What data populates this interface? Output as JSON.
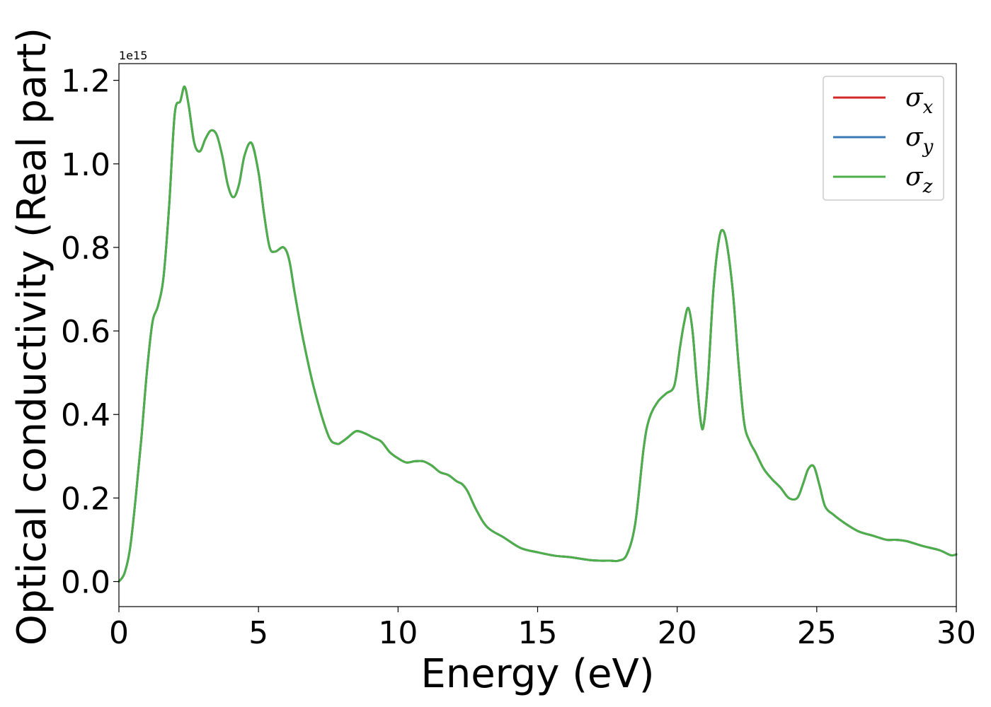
{
  "chart_data": {
    "type": "line",
    "title": "",
    "xlabel": "Energy (eV)",
    "ylabel": "Optical conductivity (Real part)",
    "y_offset_label": "1e15",
    "xlim": [
      0,
      30
    ],
    "ylim": [
      -0.06,
      1.24
    ],
    "y_multiplier": 1000000000000000.0,
    "xticks": [
      0,
      5,
      10,
      15,
      20,
      25,
      30
    ],
    "yticks": [
      0.0,
      0.2,
      0.4,
      0.6,
      0.8,
      1.0,
      1.2
    ],
    "ytick_labels": [
      "0.0",
      "0.2",
      "0.4",
      "0.6",
      "0.8",
      "1.0",
      "1.2"
    ],
    "grid": false,
    "legend_position": "top-right",
    "x": [
      0,
      0.2,
      0.4,
      0.6,
      0.8,
      1.0,
      1.2,
      1.4,
      1.6,
      1.8,
      2.0,
      2.2,
      2.35,
      2.5,
      2.7,
      2.9,
      3.1,
      3.3,
      3.5,
      3.7,
      3.9,
      4.1,
      4.3,
      4.5,
      4.75,
      5.0,
      5.2,
      5.4,
      5.6,
      5.9,
      6.1,
      6.3,
      6.6,
      7.0,
      7.5,
      7.8,
      8.0,
      8.2,
      8.5,
      8.8,
      9.1,
      9.4,
      9.7,
      10.0,
      10.3,
      10.6,
      10.9,
      11.2,
      11.5,
      11.8,
      12.1,
      12.3,
      12.5,
      12.8,
      13.2,
      13.8,
      14.4,
      15.0,
      15.6,
      16.2,
      16.8,
      17.2,
      17.6,
      17.9,
      18.2,
      18.5,
      18.8,
      19.0,
      19.3,
      19.6,
      19.9,
      20.1,
      20.25,
      20.4,
      20.55,
      20.7,
      20.85,
      20.95,
      21.1,
      21.3,
      21.5,
      21.65,
      21.8,
      22.0,
      22.2,
      22.4,
      22.6,
      22.8,
      23.1,
      23.4,
      23.7,
      24.0,
      24.3,
      24.5,
      24.7,
      24.9,
      25.1,
      25.3,
      25.6,
      26.0,
      26.5,
      27.0,
      27.5,
      27.8,
      28.2,
      28.8,
      29.4,
      29.8,
      30.0
    ],
    "series": [
      {
        "name": "σ_x",
        "color": "#d62728",
        "values": [
          0.0,
          0.02,
          0.08,
          0.2,
          0.34,
          0.5,
          0.62,
          0.66,
          0.73,
          0.9,
          1.12,
          1.15,
          1.185,
          1.14,
          1.05,
          1.03,
          1.06,
          1.08,
          1.07,
          1.02,
          0.95,
          0.92,
          0.95,
          1.02,
          1.05,
          0.98,
          0.88,
          0.8,
          0.79,
          0.8,
          0.77,
          0.69,
          0.58,
          0.46,
          0.35,
          0.33,
          0.335,
          0.345,
          0.36,
          0.355,
          0.345,
          0.335,
          0.31,
          0.295,
          0.285,
          0.288,
          0.288,
          0.278,
          0.262,
          0.255,
          0.24,
          0.233,
          0.215,
          0.172,
          0.13,
          0.105,
          0.08,
          0.07,
          0.062,
          0.058,
          0.052,
          0.05,
          0.05,
          0.05,
          0.065,
          0.14,
          0.32,
          0.39,
          0.43,
          0.45,
          0.47,
          0.56,
          0.62,
          0.655,
          0.6,
          0.48,
          0.38,
          0.375,
          0.48,
          0.7,
          0.82,
          0.84,
          0.8,
          0.69,
          0.52,
          0.38,
          0.335,
          0.31,
          0.27,
          0.245,
          0.225,
          0.2,
          0.2,
          0.232,
          0.27,
          0.275,
          0.23,
          0.18,
          0.16,
          0.14,
          0.12,
          0.11,
          0.1,
          0.1,
          0.097,
          0.085,
          0.075,
          0.063,
          0.065
        ]
      },
      {
        "name": "σ_y",
        "color": "#3979b6",
        "values": [
          0.0,
          0.02,
          0.08,
          0.2,
          0.34,
          0.5,
          0.62,
          0.66,
          0.73,
          0.9,
          1.12,
          1.15,
          1.185,
          1.14,
          1.05,
          1.03,
          1.06,
          1.08,
          1.07,
          1.02,
          0.95,
          0.92,
          0.95,
          1.02,
          1.05,
          0.98,
          0.88,
          0.8,
          0.79,
          0.8,
          0.77,
          0.69,
          0.58,
          0.46,
          0.35,
          0.33,
          0.335,
          0.345,
          0.36,
          0.355,
          0.345,
          0.335,
          0.31,
          0.295,
          0.285,
          0.288,
          0.288,
          0.278,
          0.262,
          0.255,
          0.24,
          0.233,
          0.215,
          0.172,
          0.13,
          0.105,
          0.08,
          0.07,
          0.062,
          0.058,
          0.052,
          0.05,
          0.05,
          0.05,
          0.065,
          0.14,
          0.32,
          0.39,
          0.43,
          0.45,
          0.47,
          0.56,
          0.62,
          0.655,
          0.6,
          0.48,
          0.38,
          0.375,
          0.48,
          0.7,
          0.82,
          0.84,
          0.8,
          0.69,
          0.52,
          0.38,
          0.335,
          0.31,
          0.27,
          0.245,
          0.225,
          0.2,
          0.2,
          0.232,
          0.27,
          0.275,
          0.23,
          0.18,
          0.16,
          0.14,
          0.12,
          0.11,
          0.1,
          0.1,
          0.097,
          0.085,
          0.075,
          0.063,
          0.065
        ]
      },
      {
        "name": "σ_z",
        "color": "#4daf4a",
        "values": [
          0.0,
          0.02,
          0.08,
          0.2,
          0.34,
          0.5,
          0.62,
          0.66,
          0.73,
          0.9,
          1.12,
          1.15,
          1.185,
          1.14,
          1.05,
          1.03,
          1.06,
          1.08,
          1.07,
          1.02,
          0.95,
          0.92,
          0.95,
          1.02,
          1.05,
          0.98,
          0.88,
          0.8,
          0.79,
          0.8,
          0.77,
          0.69,
          0.58,
          0.46,
          0.35,
          0.33,
          0.335,
          0.345,
          0.36,
          0.355,
          0.345,
          0.335,
          0.31,
          0.295,
          0.285,
          0.288,
          0.288,
          0.278,
          0.262,
          0.255,
          0.24,
          0.233,
          0.215,
          0.172,
          0.13,
          0.105,
          0.08,
          0.07,
          0.062,
          0.058,
          0.052,
          0.05,
          0.05,
          0.05,
          0.065,
          0.14,
          0.32,
          0.39,
          0.43,
          0.45,
          0.47,
          0.56,
          0.62,
          0.655,
          0.6,
          0.48,
          0.38,
          0.375,
          0.48,
          0.7,
          0.82,
          0.84,
          0.8,
          0.69,
          0.52,
          0.38,
          0.335,
          0.31,
          0.27,
          0.245,
          0.225,
          0.2,
          0.2,
          0.232,
          0.27,
          0.275,
          0.23,
          0.18,
          0.16,
          0.14,
          0.12,
          0.11,
          0.1,
          0.1,
          0.097,
          0.085,
          0.075,
          0.063,
          0.065
        ]
      }
    ],
    "legend": [
      {
        "symbol": "σ",
        "subscript": "x",
        "color": "#d62728"
      },
      {
        "symbol": "σ",
        "subscript": "y",
        "color": "#3979b6"
      },
      {
        "symbol": "σ",
        "subscript": "z",
        "color": "#4daf4a"
      }
    ]
  }
}
